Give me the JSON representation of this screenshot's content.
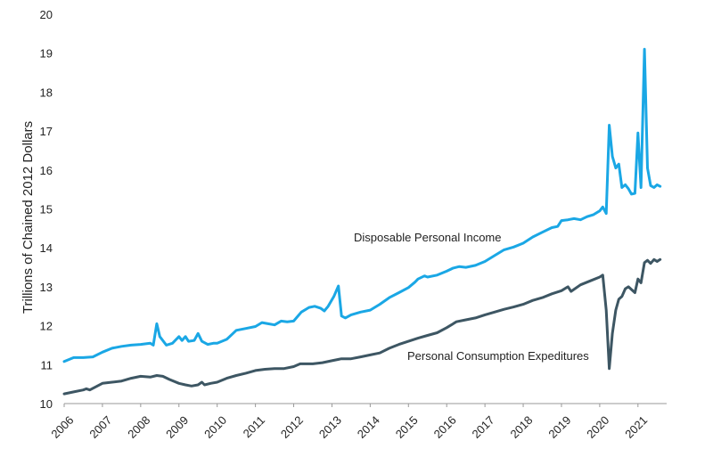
{
  "chart_data": {
    "type": "line",
    "title": "",
    "xlabel": "",
    "ylabel": "Trillions of Chained 2012 Dollars",
    "xlim": [
      2006,
      2021.75
    ],
    "ylim": [
      10,
      20
    ],
    "yticks": [
      "10",
      "11",
      "12",
      "13",
      "14",
      "15",
      "16",
      "17",
      "18",
      "19",
      "20"
    ],
    "xticks": [
      "2006",
      "2007",
      "2008",
      "2009",
      "2010",
      "2011",
      "2012",
      "2013",
      "2014",
      "2015",
      "2016",
      "2017",
      "2018",
      "2019",
      "2020",
      "2021"
    ],
    "grid": false,
    "legend": "none",
    "annotations": [
      {
        "text": "Disposable Personal Income",
        "series": 0
      },
      {
        "text": "Personal Consumption Expeditures",
        "series": 1
      }
    ],
    "series": [
      {
        "name": "Disposable Personal Income",
        "color": "#1aa7e5",
        "points": [
          [
            2006.0,
            11.08
          ],
          [
            2006.25,
            11.18
          ],
          [
            2006.5,
            11.18
          ],
          [
            2006.75,
            11.2
          ],
          [
            2007.0,
            11.32
          ],
          [
            2007.25,
            11.42
          ],
          [
            2007.5,
            11.47
          ],
          [
            2007.75,
            11.5
          ],
          [
            2008.0,
            11.52
          ],
          [
            2008.25,
            11.55
          ],
          [
            2008.33,
            11.5
          ],
          [
            2008.42,
            12.05
          ],
          [
            2008.5,
            11.72
          ],
          [
            2008.67,
            11.5
          ],
          [
            2008.83,
            11.55
          ],
          [
            2009.0,
            11.72
          ],
          [
            2009.08,
            11.62
          ],
          [
            2009.17,
            11.72
          ],
          [
            2009.25,
            11.6
          ],
          [
            2009.4,
            11.62
          ],
          [
            2009.5,
            11.8
          ],
          [
            2009.6,
            11.6
          ],
          [
            2009.75,
            11.52
          ],
          [
            2009.9,
            11.55
          ],
          [
            2010.0,
            11.55
          ],
          [
            2010.25,
            11.65
          ],
          [
            2010.5,
            11.88
          ],
          [
            2010.75,
            11.93
          ],
          [
            2011.0,
            11.98
          ],
          [
            2011.17,
            12.08
          ],
          [
            2011.33,
            12.05
          ],
          [
            2011.5,
            12.02
          ],
          [
            2011.67,
            12.12
          ],
          [
            2011.83,
            12.1
          ],
          [
            2012.0,
            12.12
          ],
          [
            2012.2,
            12.35
          ],
          [
            2012.4,
            12.47
          ],
          [
            2012.55,
            12.5
          ],
          [
            2012.7,
            12.45
          ],
          [
            2012.8,
            12.38
          ],
          [
            2012.9,
            12.5
          ],
          [
            2013.05,
            12.75
          ],
          [
            2013.17,
            13.02
          ],
          [
            2013.25,
            12.25
          ],
          [
            2013.35,
            12.2
          ],
          [
            2013.5,
            12.28
          ],
          [
            2013.75,
            12.35
          ],
          [
            2014.0,
            12.4
          ],
          [
            2014.25,
            12.55
          ],
          [
            2014.5,
            12.72
          ],
          [
            2014.75,
            12.85
          ],
          [
            2015.0,
            12.98
          ],
          [
            2015.17,
            13.12
          ],
          [
            2015.25,
            13.2
          ],
          [
            2015.42,
            13.28
          ],
          [
            2015.5,
            13.25
          ],
          [
            2015.75,
            13.3
          ],
          [
            2016.0,
            13.4
          ],
          [
            2016.17,
            13.48
          ],
          [
            2016.33,
            13.52
          ],
          [
            2016.5,
            13.5
          ],
          [
            2016.75,
            13.55
          ],
          [
            2017.0,
            13.65
          ],
          [
            2017.25,
            13.8
          ],
          [
            2017.5,
            13.95
          ],
          [
            2017.75,
            14.02
          ],
          [
            2018.0,
            14.12
          ],
          [
            2018.25,
            14.28
          ],
          [
            2018.5,
            14.4
          ],
          [
            2018.75,
            14.52
          ],
          [
            2018.9,
            14.55
          ],
          [
            2019.0,
            14.7
          ],
          [
            2019.17,
            14.72
          ],
          [
            2019.33,
            14.75
          ],
          [
            2019.5,
            14.72
          ],
          [
            2019.67,
            14.8
          ],
          [
            2019.83,
            14.85
          ],
          [
            2020.0,
            14.95
          ],
          [
            2020.08,
            15.05
          ],
          [
            2020.17,
            14.88
          ],
          [
            2020.25,
            17.15
          ],
          [
            2020.33,
            16.35
          ],
          [
            2020.42,
            16.05
          ],
          [
            2020.5,
            16.15
          ],
          [
            2020.58,
            15.55
          ],
          [
            2020.67,
            15.62
          ],
          [
            2020.75,
            15.52
          ],
          [
            2020.83,
            15.38
          ],
          [
            2020.92,
            15.4
          ],
          [
            2021.0,
            16.95
          ],
          [
            2021.08,
            15.55
          ],
          [
            2021.17,
            19.1
          ],
          [
            2021.25,
            16.05
          ],
          [
            2021.33,
            15.6
          ],
          [
            2021.42,
            15.55
          ],
          [
            2021.5,
            15.62
          ],
          [
            2021.58,
            15.58
          ]
        ]
      },
      {
        "name": "Personal Consumption Expeditures",
        "color": "#3d5663",
        "points": [
          [
            2006.0,
            10.25
          ],
          [
            2006.25,
            10.3
          ],
          [
            2006.5,
            10.35
          ],
          [
            2006.58,
            10.38
          ],
          [
            2006.67,
            10.35
          ],
          [
            2007.0,
            10.52
          ],
          [
            2007.25,
            10.55
          ],
          [
            2007.5,
            10.58
          ],
          [
            2007.75,
            10.65
          ],
          [
            2008.0,
            10.7
          ],
          [
            2008.25,
            10.68
          ],
          [
            2008.42,
            10.72
          ],
          [
            2008.58,
            10.7
          ],
          [
            2008.75,
            10.62
          ],
          [
            2009.0,
            10.52
          ],
          [
            2009.17,
            10.48
          ],
          [
            2009.33,
            10.45
          ],
          [
            2009.5,
            10.48
          ],
          [
            2009.6,
            10.55
          ],
          [
            2009.67,
            10.48
          ],
          [
            2009.83,
            10.52
          ],
          [
            2010.0,
            10.55
          ],
          [
            2010.25,
            10.65
          ],
          [
            2010.5,
            10.72
          ],
          [
            2010.75,
            10.78
          ],
          [
            2011.0,
            10.85
          ],
          [
            2011.25,
            10.88
          ],
          [
            2011.5,
            10.9
          ],
          [
            2011.75,
            10.9
          ],
          [
            2012.0,
            10.95
          ],
          [
            2012.17,
            11.02
          ],
          [
            2012.5,
            11.02
          ],
          [
            2012.75,
            11.05
          ],
          [
            2013.0,
            11.1
          ],
          [
            2013.25,
            11.15
          ],
          [
            2013.5,
            11.15
          ],
          [
            2013.75,
            11.2
          ],
          [
            2014.0,
            11.25
          ],
          [
            2014.25,
            11.3
          ],
          [
            2014.5,
            11.42
          ],
          [
            2014.75,
            11.52
          ],
          [
            2015.0,
            11.6
          ],
          [
            2015.25,
            11.68
          ],
          [
            2015.5,
            11.75
          ],
          [
            2015.75,
            11.82
          ],
          [
            2016.0,
            11.95
          ],
          [
            2016.17,
            12.05
          ],
          [
            2016.25,
            12.1
          ],
          [
            2016.5,
            12.15
          ],
          [
            2016.75,
            12.2
          ],
          [
            2017.0,
            12.28
          ],
          [
            2017.25,
            12.35
          ],
          [
            2017.5,
            12.42
          ],
          [
            2017.75,
            12.48
          ],
          [
            2018.0,
            12.55
          ],
          [
            2018.25,
            12.65
          ],
          [
            2018.5,
            12.72
          ],
          [
            2018.75,
            12.82
          ],
          [
            2019.0,
            12.9
          ],
          [
            2019.17,
            13.0
          ],
          [
            2019.25,
            12.88
          ],
          [
            2019.5,
            13.05
          ],
          [
            2019.75,
            13.15
          ],
          [
            2020.0,
            13.25
          ],
          [
            2020.08,
            13.3
          ],
          [
            2020.17,
            12.4
          ],
          [
            2020.25,
            10.9
          ],
          [
            2020.33,
            11.8
          ],
          [
            2020.42,
            12.4
          ],
          [
            2020.5,
            12.68
          ],
          [
            2020.58,
            12.75
          ],
          [
            2020.67,
            12.95
          ],
          [
            2020.75,
            13.0
          ],
          [
            2020.92,
            12.85
          ],
          [
            2021.0,
            13.2
          ],
          [
            2021.08,
            13.1
          ],
          [
            2021.17,
            13.62
          ],
          [
            2021.25,
            13.68
          ],
          [
            2021.33,
            13.6
          ],
          [
            2021.42,
            13.7
          ],
          [
            2021.5,
            13.65
          ],
          [
            2021.58,
            13.7
          ]
        ]
      }
    ]
  }
}
